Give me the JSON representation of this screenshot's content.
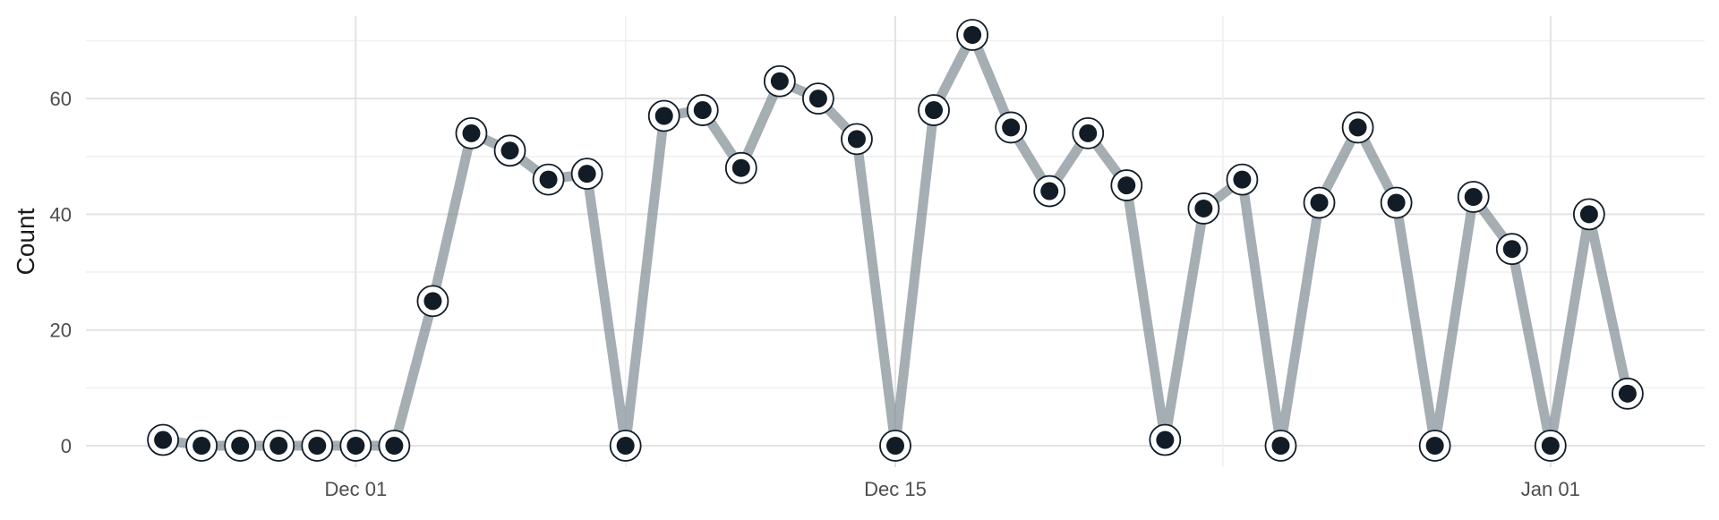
{
  "chart_data": {
    "type": "line",
    "title": "",
    "xlabel": "",
    "ylabel": "Count",
    "x_tick_labels": [
      {
        "date": "2023-12-01",
        "label": "Dec 01"
      },
      {
        "date": "2023-12-15",
        "label": "Dec 15"
      },
      {
        "date": "2024-01-01",
        "label": "Jan 01"
      }
    ],
    "y_ticks": [
      0,
      20,
      40,
      60
    ],
    "xlim": [
      "2023-11-24",
      "2024-01-05"
    ],
    "ylim": [
      0,
      71
    ],
    "grid": true,
    "legend": "none",
    "series": [
      {
        "x": [
          "2023-11-26",
          "2023-11-27",
          "2023-11-28",
          "2023-11-29",
          "2023-11-30",
          "2023-12-01",
          "2023-12-02",
          "2023-12-03",
          "2023-12-04",
          "2023-12-05",
          "2023-12-06",
          "2023-12-07",
          "2023-12-08",
          "2023-12-09",
          "2023-12-10",
          "2023-12-11",
          "2023-12-12",
          "2023-12-13",
          "2023-12-14",
          "2023-12-15",
          "2023-12-16",
          "2023-12-17",
          "2023-12-18",
          "2023-12-19",
          "2023-12-20",
          "2023-12-21",
          "2023-12-22",
          "2023-12-23",
          "2023-12-24",
          "2023-12-25",
          "2023-12-26",
          "2023-12-27",
          "2023-12-28",
          "2023-12-29",
          "2023-12-30",
          "2023-12-31",
          "2024-01-01",
          "2024-01-02",
          "2024-01-03"
        ],
        "values": [
          1,
          0,
          0,
          0,
          0,
          0,
          0,
          25,
          54,
          51,
          46,
          47,
          0,
          57,
          58,
          48,
          63,
          60,
          53,
          0,
          58,
          71,
          55,
          44,
          54,
          45,
          1,
          41,
          46,
          0,
          42,
          55,
          42,
          0,
          43,
          34,
          0,
          40,
          9
        ]
      }
    ],
    "colors": {
      "line": "#7f8c93",
      "point_fill": "#111c27",
      "point_ring": "#111c27",
      "grid_major": "#e3e3e3",
      "grid_minor": "#efefef",
      "background": "#ffffff"
    }
  }
}
